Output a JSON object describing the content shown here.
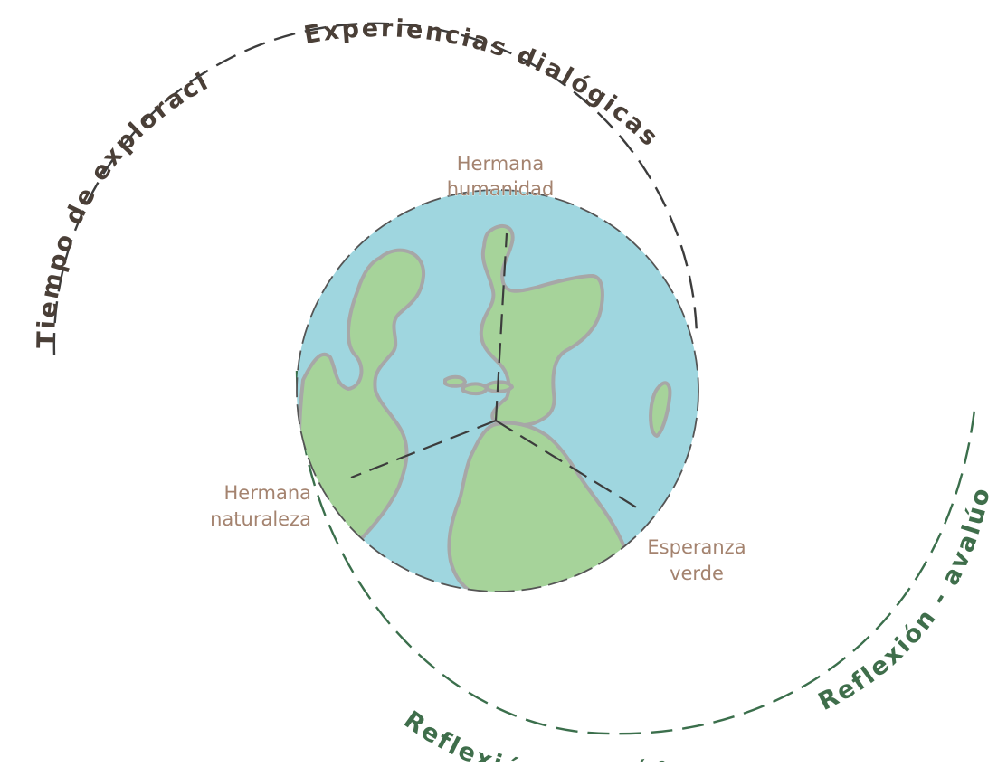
{
  "colors": {
    "ocean": "#9fd6df",
    "land": "#a6d39a",
    "coast": "#a7a7a7",
    "dark_text": "#4a3f37",
    "green_text": "#3f6e4b",
    "node_text": "#a4836f",
    "dash_dark": "#3c3c3c",
    "dash_green": "#3b6f4c"
  },
  "arcs": {
    "tiempo": "Tiempo de exploración",
    "experiencias": "Experiencias dialógicas",
    "reflexion_accion": "Reflexión - acción",
    "reflexion_avaluo": "Reflexión - avalúo"
  },
  "nodes": {
    "humanidad": [
      "Hermana",
      "humanidad"
    ],
    "naturaleza": [
      "Hermana",
      "naturaleza"
    ],
    "esperanza": [
      "Esperanza",
      "verde"
    ]
  }
}
